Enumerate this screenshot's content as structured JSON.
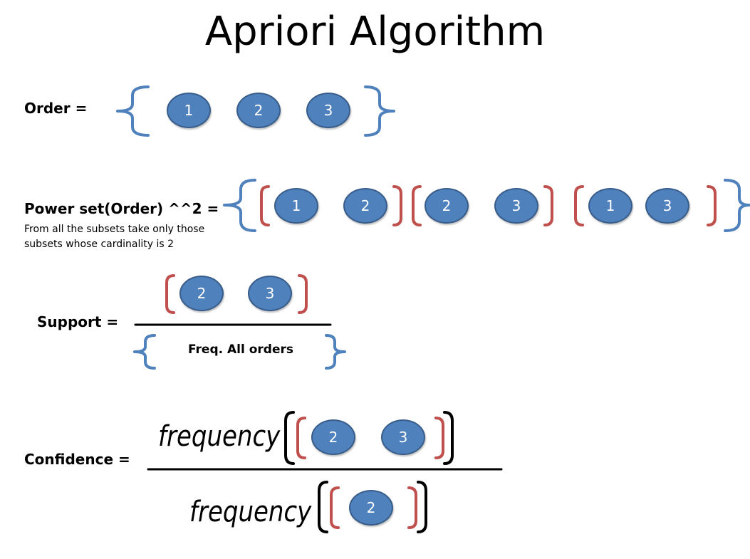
{
  "title": "Apriori Algorithm",
  "order": {
    "label": "Order =",
    "items": [
      "1",
      "2",
      "3"
    ]
  },
  "power_set": {
    "label": "Power set(Order) ^^2 =",
    "note_line1": "From all the subsets take only those",
    "note_line2": "subsets whose cardinality is 2",
    "pairs": [
      [
        "1",
        "2"
      ],
      [
        "2",
        "3"
      ],
      [
        "1",
        "3"
      ]
    ]
  },
  "support": {
    "label": "Support =",
    "numerator": [
      "2",
      "3"
    ],
    "denominator": "Freq. All orders"
  },
  "confidence": {
    "label": "Confidence  =",
    "freq_word": "frequency",
    "numerator": [
      "2",
      "3"
    ],
    "denominator": [
      "2"
    ]
  },
  "colors": {
    "node_fill": "#4f81bd",
    "node_border": "#385d8a",
    "curly_brace": "#4f81bd",
    "paren": "#c0504d"
  }
}
